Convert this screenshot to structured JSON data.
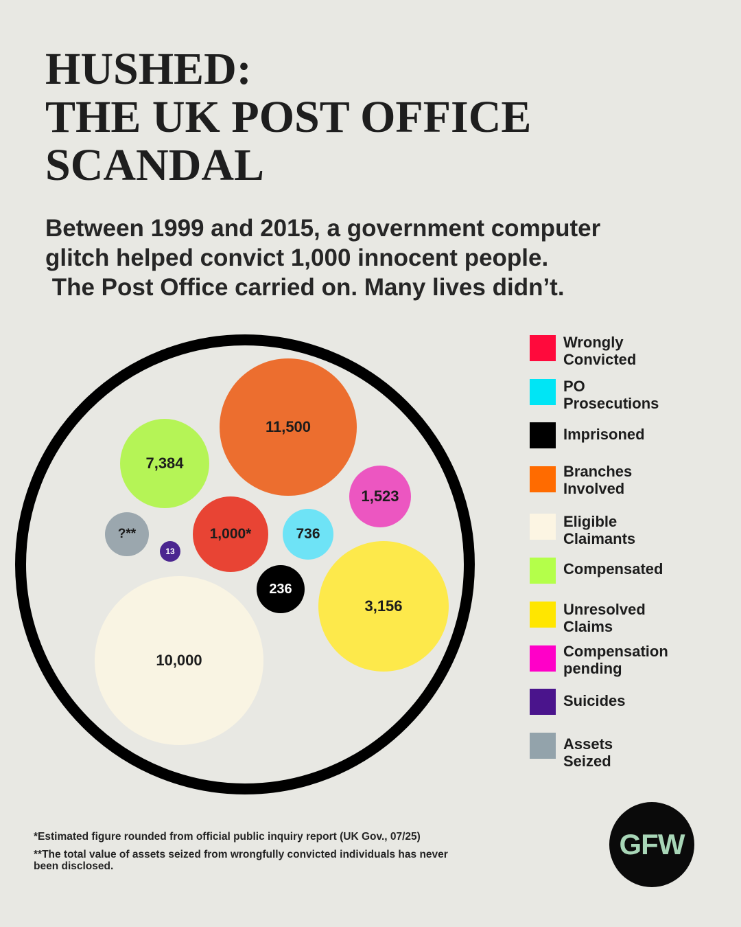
{
  "title": {
    "lines": [
      "HUSHED:",
      "THE UK POST OFFICE",
      "SCANDAL"
    ]
  },
  "subtitle": {
    "lines": [
      "Between 1999 and 2015, a government computer",
      "glitch helped convict 1,000 innocent people.",
      " The Post Office carried on. Many lives didn’t."
    ]
  },
  "chart_data": {
    "type": "scatter",
    "series": [
      {
        "legend_lines": [
          "Wrongly",
          "Convicted"
        ],
        "value": 1000,
        "label": "1,000*",
        "bubble_color": "#e84434",
        "legend_color": "#ff0a3c"
      },
      {
        "legend_lines": [
          "PO",
          "Prosecutions"
        ],
        "value": 736,
        "label": "736",
        "bubble_color": "#6ee3f6",
        "legend_color": "#00e5f5"
      },
      {
        "legend_lines": [
          "Imprisoned"
        ],
        "value": 236,
        "label": "236",
        "bubble_color": "#000000",
        "legend_color": "#000000"
      },
      {
        "legend_lines": [
          "Branches",
          "Involved"
        ],
        "value": 11500,
        "label": "11,500",
        "bubble_color": "#ec6e2f",
        "legend_color": "#ff6b00"
      },
      {
        "legend_lines": [
          "Eligible",
          "Claimants"
        ],
        "value": 10000,
        "label": "10,000",
        "bubble_color": "#f9f4e3",
        "legend_color": "#fcf5e3"
      },
      {
        "legend_lines": [
          "Compensated"
        ],
        "value": 7384,
        "label": "7,384",
        "bubble_color": "#b5f456",
        "legend_color": "#b4ff4a"
      },
      {
        "legend_lines": [
          "Unresolved",
          "Claims"
        ],
        "value": 3156,
        "label": "3,156",
        "bubble_color": "#fde94b",
        "legend_color": "#ffe600"
      },
      {
        "legend_lines": [
          "Compensation",
          "pending"
        ],
        "value": 1523,
        "label": "1,523",
        "bubble_color": "#ec56c1",
        "legend_color": "#ff00c8"
      },
      {
        "legend_lines": [
          "Suicides"
        ],
        "value": 13,
        "label": "13",
        "bubble_color": "#4b2690",
        "legend_color": "#4a148c"
      },
      {
        "legend_lines": [
          "Assets",
          "Seized"
        ],
        "value": null,
        "label": "?**",
        "bubble_color": "#9ba7ae",
        "legend_color": "#93a3ab"
      }
    ]
  },
  "footnotes": {
    "estimate": "*Estimated figure rounded from official public inquiry report (UK Gov., 07/25)",
    "assets_lines": [
      "**The total value of assets seized from wrongfully convicted individuals has never",
      "been disclosed."
    ]
  },
  "logo": {
    "text": "GFW"
  }
}
